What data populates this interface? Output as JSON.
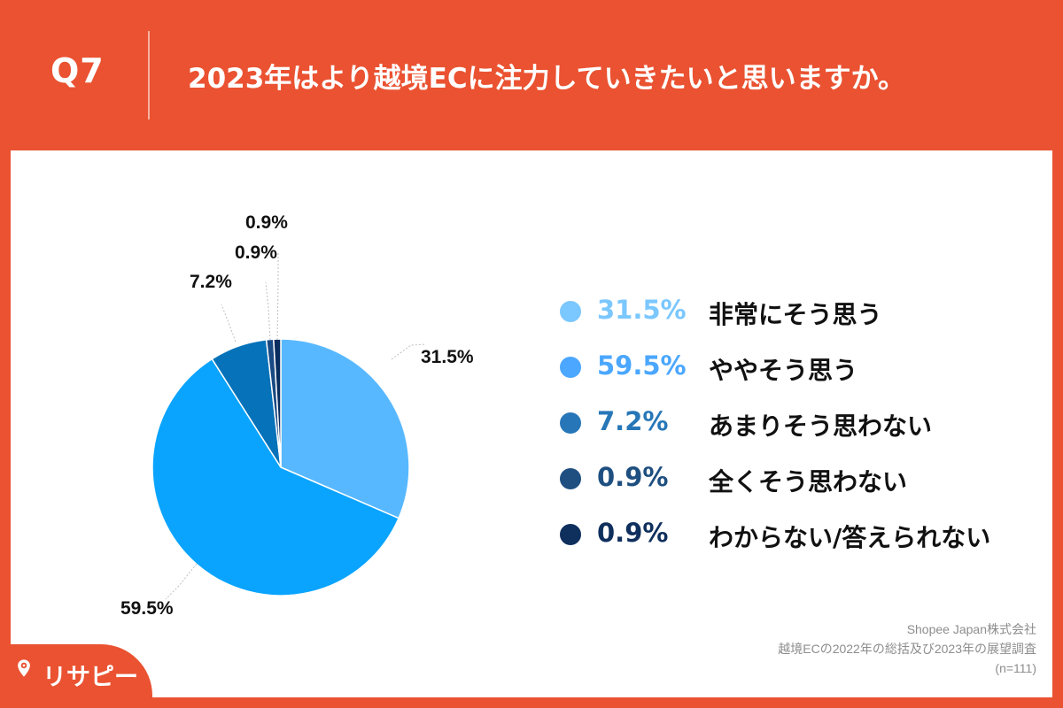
{
  "header": {
    "question_number": "Q7",
    "question_text": "2023年はより越境ECに注力していきたいと思いますか。"
  },
  "chart_data": {
    "type": "pie",
    "categories": [
      "非常にそう思う",
      "ややそう思う",
      "あまりそう思わない",
      "全くそう思わない",
      "わからない/答えられない"
    ],
    "values": [
      31.5,
      59.5,
      7.2,
      0.9,
      0.9
    ],
    "labels": [
      "31.5%",
      "59.5%",
      "7.2%",
      "0.9%",
      "0.9%"
    ],
    "colors": [
      "#58b8ff",
      "#0aa4ff",
      "#0572b9",
      "#1a4a84",
      "#082d5e"
    ],
    "legend_colors": [
      "#7bc7ff",
      "#4ba7ff",
      "#2777b8",
      "#1e4f80",
      "#0f2f5d"
    ],
    "legend_text_colors": [
      "#7bc7ff",
      "#4ba7ff",
      "#2777b8",
      "#1e4f80",
      "#0f2f5d"
    ],
    "legend_position": "right"
  },
  "source": {
    "company": "Shopee Japan株式会社",
    "survey": "越境ECの2022年の総括及び2023年の展望調査",
    "sample": "(n=111)"
  },
  "brand": {
    "name": "リサピー",
    "icon": "location-pin-icon"
  }
}
